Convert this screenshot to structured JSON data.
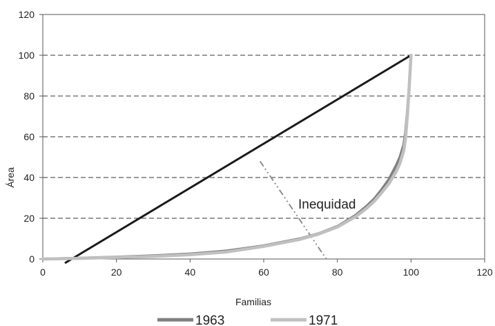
{
  "chart_data": {
    "type": "line",
    "title": "",
    "xlabel": "Familias",
    "ylabel": "Área",
    "xlim": [
      0,
      120
    ],
    "ylim": [
      0,
      120
    ],
    "xticks": [
      0,
      20,
      40,
      60,
      80,
      100,
      120
    ],
    "yticks": [
      0,
      20,
      40,
      60,
      80,
      100,
      120
    ],
    "grid": "horizontal dashed",
    "legend_position": "bottom",
    "annotation": "Inequidad",
    "series": [
      {
        "name": "1963",
        "color": "#808080",
        "x": [
          0,
          10,
          20,
          30,
          40,
          50,
          60,
          70,
          75,
          80,
          85,
          88,
          90,
          92,
          94,
          96,
          97,
          98,
          98.5,
          99,
          99.5,
          100
        ],
        "y": [
          0,
          0.4,
          1,
          1.6,
          2.5,
          4,
          6.5,
          10,
          12.5,
          16,
          21.5,
          26,
          29.5,
          34,
          39,
          46,
          50,
          56,
          62,
          72,
          85,
          100
        ]
      },
      {
        "name": "1971",
        "color": "#c0c0c0",
        "x": [
          0,
          10,
          20,
          30,
          40,
          50,
          60,
          70,
          75,
          80,
          85,
          88,
          90,
          92,
          94,
          96,
          97,
          98,
          98.5,
          99,
          99.5,
          100
        ],
        "y": [
          0,
          0.3,
          0.8,
          1.3,
          2.1,
          3.5,
          6.2,
          9.7,
          12.3,
          15.7,
          20.8,
          25,
          28.3,
          32.5,
          37,
          43,
          47,
          53,
          59,
          70,
          84,
          100
        ]
      }
    ],
    "reference_lines": [
      {
        "x": [
          6,
          100
        ],
        "y": [
          -2,
          100
        ],
        "color": "#1a1a1a"
      },
      {
        "x": [
          59,
          77
        ],
        "y": [
          48,
          0
        ],
        "color": "#8c8c8c"
      }
    ]
  }
}
